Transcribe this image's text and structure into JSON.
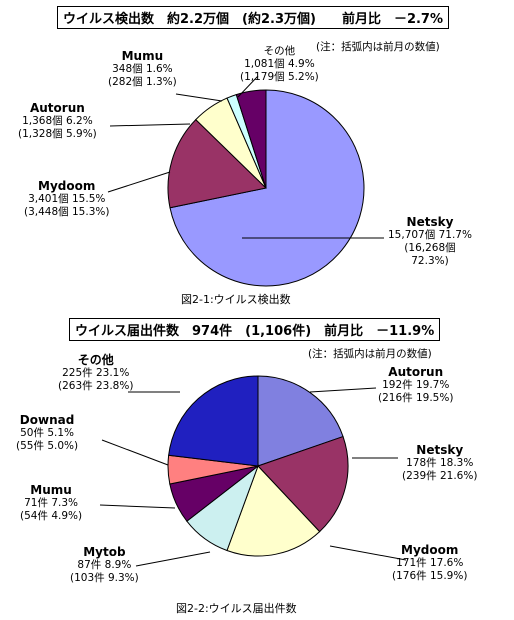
{
  "chart_data": [
    {
      "type": "pie",
      "title": "ウイルス検出数　約2.2万個　(約2.3万個)　　前月比　－2.7%",
      "note": "(注：括弧内は前月の数値)",
      "caption": "図2-1:ウイルス検出数",
      "slices": [
        {
          "name": "Netsky",
          "count": "15,707個",
          "pct": "71.7%",
          "prev_count": "(16,268個",
          "prev_pct": "72.3%)",
          "value": 71.7,
          "color": "#9999ff"
        },
        {
          "name": "Mydoom",
          "count": "3,401個",
          "pct": "15.5%",
          "prev_count": "(3,448個",
          "prev_pct": "15.3%)",
          "value": 15.5,
          "color": "#993366"
        },
        {
          "name": "Autorun",
          "count": "1,368個",
          "pct": "6.2%",
          "prev_count": "(1,328個",
          "prev_pct": "5.9%)",
          "value": 6.2,
          "color": "#ffffcc"
        },
        {
          "name": "Mumu",
          "count": "348個",
          "pct": "1.6%",
          "prev_count": "(282個",
          "prev_pct": "1.3%)",
          "value": 1.6,
          "color": "#ccffff"
        },
        {
          "name": "その他",
          "count": "1,081個",
          "pct": "4.9%",
          "prev_count": "(1,179個",
          "prev_pct": "5.2%)",
          "value": 4.9,
          "color": "#660066"
        }
      ]
    },
    {
      "type": "pie",
      "title": "ウイルス届出件数　974件　(1,106件)　前月比　－11.9%",
      "note": "(注：括弧内は前月の数値)",
      "caption": "図2-2:ウイルス届出件数",
      "slices": [
        {
          "name": "Autorun",
          "count": "192件",
          "pct": "19.7%",
          "prev_count": "(216件",
          "prev_pct": "19.5%)",
          "value": 19.7,
          "color": "#8080e0"
        },
        {
          "name": "Netsky",
          "count": "178件",
          "pct": "18.3%",
          "prev_count": "(239件",
          "prev_pct": "21.6%)",
          "value": 18.3,
          "color": "#993366"
        },
        {
          "name": "Mydoom",
          "count": "171件",
          "pct": "17.6%",
          "prev_count": "(176件",
          "prev_pct": "15.9%)",
          "value": 17.6,
          "color": "#ffffcc"
        },
        {
          "name": "Mytob",
          "count": "87件",
          "pct": "8.9%",
          "prev_count": "(103件",
          "prev_pct": "9.3%)",
          "value": 8.9,
          "color": "#ccf0f0"
        },
        {
          "name": "Mumu",
          "count": "71件",
          "pct": "7.3%",
          "prev_count": "(54件",
          "prev_pct": "4.9%)",
          "value": 7.3,
          "color": "#660066"
        },
        {
          "name": "Downad",
          "count": "50件",
          "pct": "5.1%",
          "prev_count": "(55件",
          "prev_pct": "5.0%)",
          "value": 5.1,
          "color": "#ff8080"
        },
        {
          "name": "その他",
          "count": "225件",
          "pct": "23.1%",
          "prev_count": "(263件",
          "prev_pct": "23.8%)",
          "value": 23.1,
          "color": "#2020c0"
        }
      ]
    }
  ]
}
